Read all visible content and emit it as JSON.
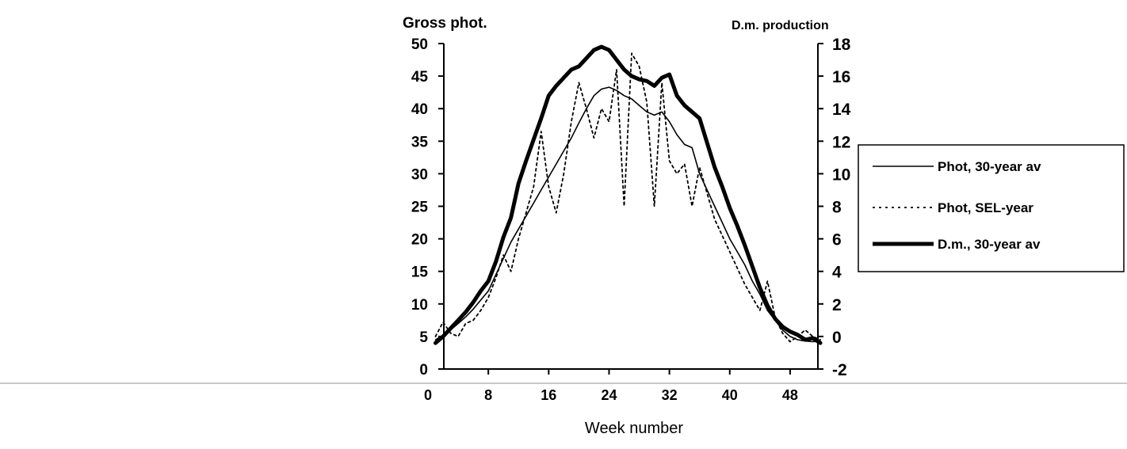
{
  "chart_data": {
    "type": "line",
    "left_axis_title": "Gross phot.",
    "right_axis_title": "D.m. production",
    "xlabel": "Week number",
    "x_ticks": [
      0,
      8,
      16,
      24,
      32,
      40,
      48
    ],
    "y_left_ticks": [
      0,
      5,
      10,
      15,
      20,
      25,
      30,
      35,
      40,
      45,
      50
    ],
    "y_right_ticks": [
      -2,
      0,
      2,
      4,
      6,
      8,
      10,
      12,
      14,
      16,
      18
    ],
    "xlim": [
      0,
      52
    ],
    "ylim_left": [
      0,
      50
    ],
    "ylim_right": [
      -2,
      18
    ],
    "grid": false,
    "legend_position": "right",
    "series": [
      {
        "name": "Phot, 30-year av",
        "axis": "left",
        "style": "thin-solid",
        "x": [
          1,
          2,
          3,
          4,
          5,
          6,
          7,
          8,
          9,
          10,
          11,
          12,
          13,
          14,
          15,
          16,
          17,
          18,
          19,
          20,
          21,
          22,
          23,
          24,
          25,
          26,
          27,
          28,
          29,
          30,
          31,
          32,
          33,
          34,
          35,
          36,
          37,
          38,
          39,
          40,
          41,
          42,
          43,
          44,
          45,
          46,
          47,
          48,
          49,
          50,
          51,
          52
        ],
        "values": [
          4.5,
          5.2,
          6.0,
          7.0,
          8.0,
          9.2,
          10.6,
          12.0,
          14.5,
          17.0,
          19.5,
          21.5,
          23.5,
          25.5,
          27.5,
          29.5,
          31.5,
          33.5,
          35.5,
          37.8,
          40.0,
          42.0,
          43.0,
          43.3,
          42.8,
          42.0,
          41.5,
          40.5,
          39.5,
          39.0,
          39.5,
          38.0,
          36.0,
          34.5,
          34.0,
          30.0,
          27.5,
          25.0,
          22.5,
          20.0,
          18.0,
          16.0,
          13.5,
          11.5,
          9.0,
          7.5,
          6.0,
          5.0,
          4.5,
          4.3,
          4.2,
          4.3
        ]
      },
      {
        "name": "Phot, SEL-year",
        "axis": "left",
        "style": "dotted",
        "x": [
          1,
          2,
          3,
          4,
          5,
          6,
          7,
          8,
          9,
          10,
          11,
          12,
          13,
          14,
          15,
          16,
          17,
          18,
          19,
          20,
          21,
          22,
          23,
          24,
          25,
          26,
          27,
          28,
          29,
          30,
          31,
          32,
          33,
          34,
          35,
          36,
          37,
          38,
          39,
          40,
          41,
          42,
          43,
          44,
          45,
          46,
          47,
          48,
          49,
          50,
          51,
          52
        ],
        "values": [
          5.0,
          7.2,
          5.5,
          5.0,
          7.0,
          7.5,
          9.0,
          11.0,
          14.0,
          17.5,
          15.0,
          20.0,
          24.0,
          28.0,
          36.5,
          28.0,
          24.0,
          30.0,
          38.0,
          44.0,
          40.0,
          35.5,
          40.0,
          38.0,
          46.0,
          25.0,
          48.5,
          46.5,
          41.0,
          25.0,
          44.0,
          32.0,
          30.0,
          31.5,
          25.0,
          31.0,
          27.0,
          23.0,
          20.5,
          18.0,
          15.5,
          13.0,
          11.0,
          9.0,
          13.5,
          8.0,
          5.5,
          4.2,
          5.0,
          6.0,
          5.0,
          4.5
        ]
      },
      {
        "name": "D.m., 30-year av",
        "axis": "right",
        "style": "thick-solid",
        "x": [
          1,
          2,
          3,
          4,
          5,
          6,
          7,
          8,
          9,
          10,
          11,
          12,
          13,
          14,
          15,
          16,
          17,
          18,
          19,
          20,
          21,
          22,
          23,
          24,
          25,
          26,
          27,
          28,
          29,
          30,
          31,
          32,
          33,
          34,
          35,
          36,
          37,
          38,
          39,
          40,
          41,
          42,
          43,
          44,
          45,
          46,
          47,
          48,
          49,
          50,
          51,
          52
        ],
        "values": [
          -0.4,
          0.0,
          0.5,
          1.0,
          1.5,
          2.1,
          2.8,
          3.4,
          4.6,
          6.1,
          7.3,
          9.4,
          10.8,
          12.1,
          13.4,
          14.8,
          15.4,
          15.9,
          16.4,
          16.6,
          17.1,
          17.6,
          17.8,
          17.6,
          17.0,
          16.4,
          16.0,
          15.8,
          15.7,
          15.4,
          15.9,
          16.1,
          14.8,
          14.2,
          13.8,
          13.4,
          11.9,
          10.4,
          9.2,
          7.9,
          6.8,
          5.6,
          4.3,
          3.0,
          1.9,
          1.1,
          0.6,
          0.3,
          0.1,
          -0.2,
          -0.1,
          -0.4
        ]
      }
    ]
  }
}
